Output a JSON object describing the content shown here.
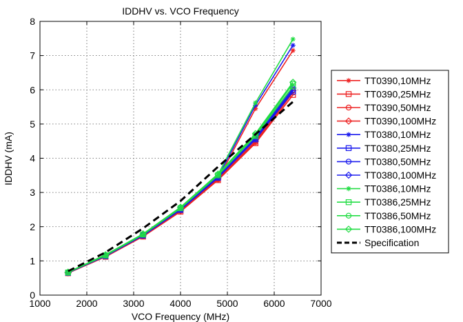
{
  "chart_data": {
    "type": "line",
    "title": "IDDHV vs. VCO Frequency",
    "xlabel": "VCO Frequency (MHz)",
    "ylabel": "IDDHV (mA)",
    "xlim": [
      1000,
      7000
    ],
    "ylim": [
      0,
      8
    ],
    "xticks": [
      1000,
      2000,
      3000,
      4000,
      5000,
      6000,
      7000
    ],
    "yticks": [
      0,
      1,
      2,
      3,
      4,
      5,
      6,
      7,
      8
    ],
    "grid": true,
    "legend_position": "right",
    "x": [
      1600,
      2400,
      3200,
      4000,
      4800,
      5600,
      6400
    ],
    "series": [
      {
        "name": "TT0390,10MHz",
        "color": "#ee2222",
        "marker": "star",
        "values": [
          0.65,
          1.13,
          1.72,
          2.45,
          3.38,
          5.45,
          7.15
        ]
      },
      {
        "name": "TT0390,25MHz",
        "color": "#ee2222",
        "marker": "square",
        "values": [
          0.64,
          1.12,
          1.71,
          2.44,
          3.36,
          4.44,
          5.85
        ]
      },
      {
        "name": "TT0390,50MHz",
        "color": "#ee2222",
        "marker": "circle",
        "values": [
          0.65,
          1.13,
          1.72,
          2.46,
          3.38,
          4.47,
          5.92
        ]
      },
      {
        "name": "TT0390,100MHz",
        "color": "#ee2222",
        "marker": "diamond",
        "values": [
          0.65,
          1.14,
          1.73,
          2.47,
          3.4,
          4.5,
          5.98
        ]
      },
      {
        "name": "TT0380,10MHz",
        "color": "#1a1aee",
        "marker": "star",
        "values": [
          0.66,
          1.15,
          1.75,
          2.5,
          3.45,
          5.55,
          7.3
        ]
      },
      {
        "name": "TT0380,25MHz",
        "color": "#1a1aee",
        "marker": "square",
        "values": [
          0.65,
          1.14,
          1.74,
          2.49,
          3.43,
          4.55,
          5.95
        ]
      },
      {
        "name": "TT0380,50MHz",
        "color": "#1a1aee",
        "marker": "circle",
        "values": [
          0.66,
          1.15,
          1.75,
          2.5,
          3.45,
          4.57,
          6.0
        ]
      },
      {
        "name": "TT0380,100MHz",
        "color": "#1a1aee",
        "marker": "diamond",
        "values": [
          0.66,
          1.15,
          1.76,
          2.51,
          3.46,
          4.6,
          6.05
        ]
      },
      {
        "name": "TT0386,10MHz",
        "color": "#22dd44",
        "marker": "star",
        "values": [
          0.67,
          1.17,
          1.78,
          2.55,
          3.52,
          5.62,
          7.48
        ]
      },
      {
        "name": "TT0386,25MHz",
        "color": "#22dd44",
        "marker": "square",
        "values": [
          0.66,
          1.16,
          1.77,
          2.54,
          3.5,
          4.65,
          6.1
        ]
      },
      {
        "name": "TT0386,50MHz",
        "color": "#22dd44",
        "marker": "circle",
        "values": [
          0.67,
          1.17,
          1.78,
          2.56,
          3.52,
          4.68,
          6.18
        ]
      },
      {
        "name": "TT0386,100MHz",
        "color": "#22dd44",
        "marker": "diamond",
        "values": [
          0.67,
          1.18,
          1.79,
          2.57,
          3.54,
          4.72,
          6.22
        ]
      },
      {
        "name": "Specification",
        "color": "#000000",
        "marker": "none",
        "dashed": true,
        "values": [
          0.7,
          1.25,
          1.95,
          2.75,
          3.75,
          4.7,
          5.65
        ]
      }
    ]
  }
}
